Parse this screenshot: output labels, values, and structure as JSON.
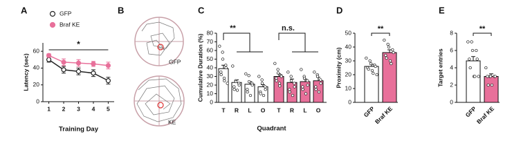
{
  "chart_data": [
    {
      "panel": "A",
      "type": "line",
      "ylabel": "Latency (sec)",
      "xlabel": "Training Day",
      "x": [
        1,
        2,
        3,
        4,
        5
      ],
      "xlim": [
        0.6,
        5.4
      ],
      "xticks": [
        1,
        2,
        3,
        4,
        5
      ],
      "ylim": [
        0,
        70
      ],
      "yticks": [
        0,
        20,
        40,
        60
      ],
      "annotation": "*",
      "series": [
        {
          "name": "GFP",
          "color": "#222222",
          "marker": "open",
          "values": [
            50,
            38,
            36,
            34,
            25
          ],
          "errors": [
            3,
            4,
            4,
            4,
            4
          ]
        },
        {
          "name": "Braf KE",
          "color": "#e8709a",
          "marker": "filled",
          "values": [
            55,
            47,
            46,
            45,
            43
          ],
          "errors": [
            2,
            4,
            4,
            3,
            4
          ]
        }
      ]
    },
    {
      "panel": "C",
      "type": "bar",
      "ylabel": "Cumulative Duration (%)",
      "xlabel": "Quadrant",
      "categories": [
        "T",
        "R",
        "L",
        "O"
      ],
      "ylim": [
        0,
        80
      ],
      "yticks": [
        0,
        10,
        20,
        30,
        40,
        50,
        60,
        70,
        80
      ],
      "annotations": [
        "**",
        "n.s."
      ],
      "series": [
        {
          "color": "#ffffff",
          "values": [
            39,
            23,
            21,
            18
          ],
          "errors": [
            4,
            3,
            3,
            2.5
          ],
          "points": [
            [
              65,
              58,
              50,
              43,
              40,
              35,
              32,
              28,
              25,
              22
            ],
            [
              42,
              25,
              24,
              22,
              20,
              18,
              15,
              14
            ],
            [
              33,
              31,
              24,
              22,
              20,
              15,
              12,
              8
            ],
            [
              30,
              26,
              22,
              18,
              15,
              12,
              10,
              8
            ]
          ]
        },
        {
          "color": "#e8709a",
          "values": [
            30,
            23,
            24,
            25
          ],
          "errors": [
            3,
            4,
            3,
            4
          ],
          "points": [
            [
              45,
              38,
              34,
              31,
              30,
              28,
              25,
              22,
              19
            ],
            [
              35,
              30,
              25,
              22,
              18,
              15,
              12,
              8
            ],
            [
              38,
              30,
              28,
              25,
              20,
              18,
              15,
              10
            ],
            [
              35,
              32,
              30,
              26,
              22,
              18,
              15,
              12
            ]
          ]
        }
      ]
    },
    {
      "panel": "D",
      "type": "bar",
      "ylabel": "Proximity (cm)",
      "categories": [
        "GFP",
        "Braf KE"
      ],
      "ylim": [
        0,
        50
      ],
      "yticks": [
        0,
        10,
        20,
        30,
        40,
        50
      ],
      "annotation": "**",
      "colors": [
        "#ffffff",
        "#e8709a"
      ],
      "values": [
        26,
        36
      ],
      "errors": [
        1.5,
        2
      ],
      "points": [
        [
          32,
          30,
          28,
          27,
          26,
          25,
          24,
          23,
          21,
          20
        ],
        [
          45,
          42,
          40,
          38,
          36,
          34,
          32,
          30,
          28
        ]
      ]
    },
    {
      "panel": "E",
      "type": "bar",
      "ylabel": "Target entries",
      "categories": [
        "GFP",
        "Braf KE"
      ],
      "ylim": [
        0,
        8
      ],
      "yticks": [
        0,
        2,
        4,
        6,
        8
      ],
      "annotation": "**",
      "colors": [
        "#ffffff",
        "#e8709a"
      ],
      "values": [
        4.8,
        3.0
      ],
      "errors": [
        0.5,
        0.3
      ],
      "points": [
        [
          7,
          7,
          6,
          6,
          5,
          5,
          4,
          3,
          3,
          3
        ],
        [
          4,
          3,
          3,
          3,
          3,
          3,
          2,
          2
        ]
      ]
    }
  ],
  "tracking": {
    "panel": "B",
    "labels": [
      "GFP",
      "KE"
    ]
  }
}
